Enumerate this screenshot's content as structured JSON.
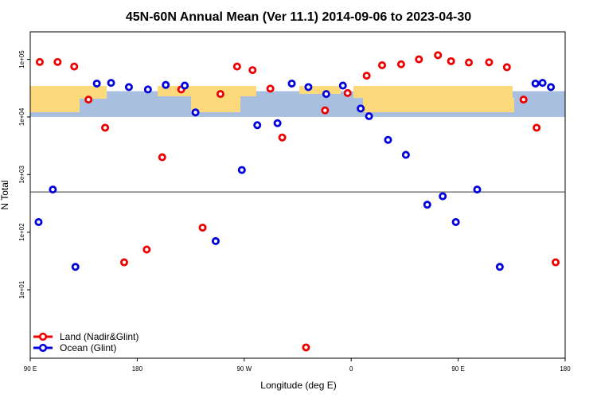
{
  "chart_data": {
    "type": "scatter",
    "title": "45N-60N Annual Mean (Ver 11.1)   2014-09-06 to 2023-04-30",
    "xlabel": "Longitude (deg E)",
    "ylabel": "N Total",
    "y_scale": "log",
    "xlim": [
      90,
      540
    ],
    "ylim": [
      0.65,
      300000
    ],
    "x_ticks": [
      {
        "value": 90,
        "label": "90 E"
      },
      {
        "value": 180,
        "label": "180"
      },
      {
        "value": 270,
        "label": "90 W"
      },
      {
        "value": 360,
        "label": "0"
      },
      {
        "value": 450,
        "label": "90 E"
      },
      {
        "value": 540,
        "label": "180"
      }
    ],
    "y_ticks": [
      {
        "value": 10,
        "label": "1e+01"
      },
      {
        "value": 100,
        "label": "1e+02"
      },
      {
        "value": 1000,
        "label": "1e+03"
      },
      {
        "value": 10000,
        "label": "1e+04"
      },
      {
        "value": 100000,
        "label": "1e+05"
      }
    ],
    "reference_line_y": 500,
    "map_band": {
      "y_min": 10000,
      "y_max": 28000,
      "ocean_color": "#a8bfe0",
      "land_color": "#fcd97a"
    },
    "legend_position": "bottom-left",
    "series": [
      {
        "name": "Land (Nadir&Glint)",
        "color": "#ee0000",
        "x": [
          98,
          113,
          127,
          139,
          153,
          169,
          188,
          201,
          217,
          235,
          250,
          264,
          277,
          292,
          302,
          322,
          338,
          357,
          373,
          386,
          402,
          417,
          433,
          444,
          459,
          476,
          491,
          505,
          516,
          532
        ],
        "y": [
          90000,
          90000,
          75000,
          20000,
          6500,
          30,
          50,
          2000,
          30000,
          120,
          25000,
          75000,
          65000,
          31000,
          4400,
          1,
          13000,
          26000,
          52000,
          79000,
          82000,
          100000,
          118000,
          93000,
          88000,
          89000,
          73000,
          20000,
          6500,
          30
        ]
      },
      {
        "name": "Ocean (Glint)",
        "color": "#0000dd",
        "x": [
          97,
          109,
          128,
          146,
          158,
          173,
          189,
          204,
          220,
          229,
          246,
          268,
          281,
          298,
          310,
          324,
          339,
          353,
          368,
          375,
          391,
          406,
          424,
          437,
          448,
          466,
          485,
          515,
          521,
          528
        ],
        "y": [
          150,
          550,
          25,
          38000,
          39000,
          33000,
          30000,
          36000,
          35000,
          12000,
          70,
          1200,
          7200,
          7800,
          38000,
          33000,
          25000,
          35000,
          14000,
          10300,
          4000,
          2200,
          300,
          420,
          150,
          550,
          25,
          38000,
          39000,
          33000
        ]
      }
    ]
  }
}
